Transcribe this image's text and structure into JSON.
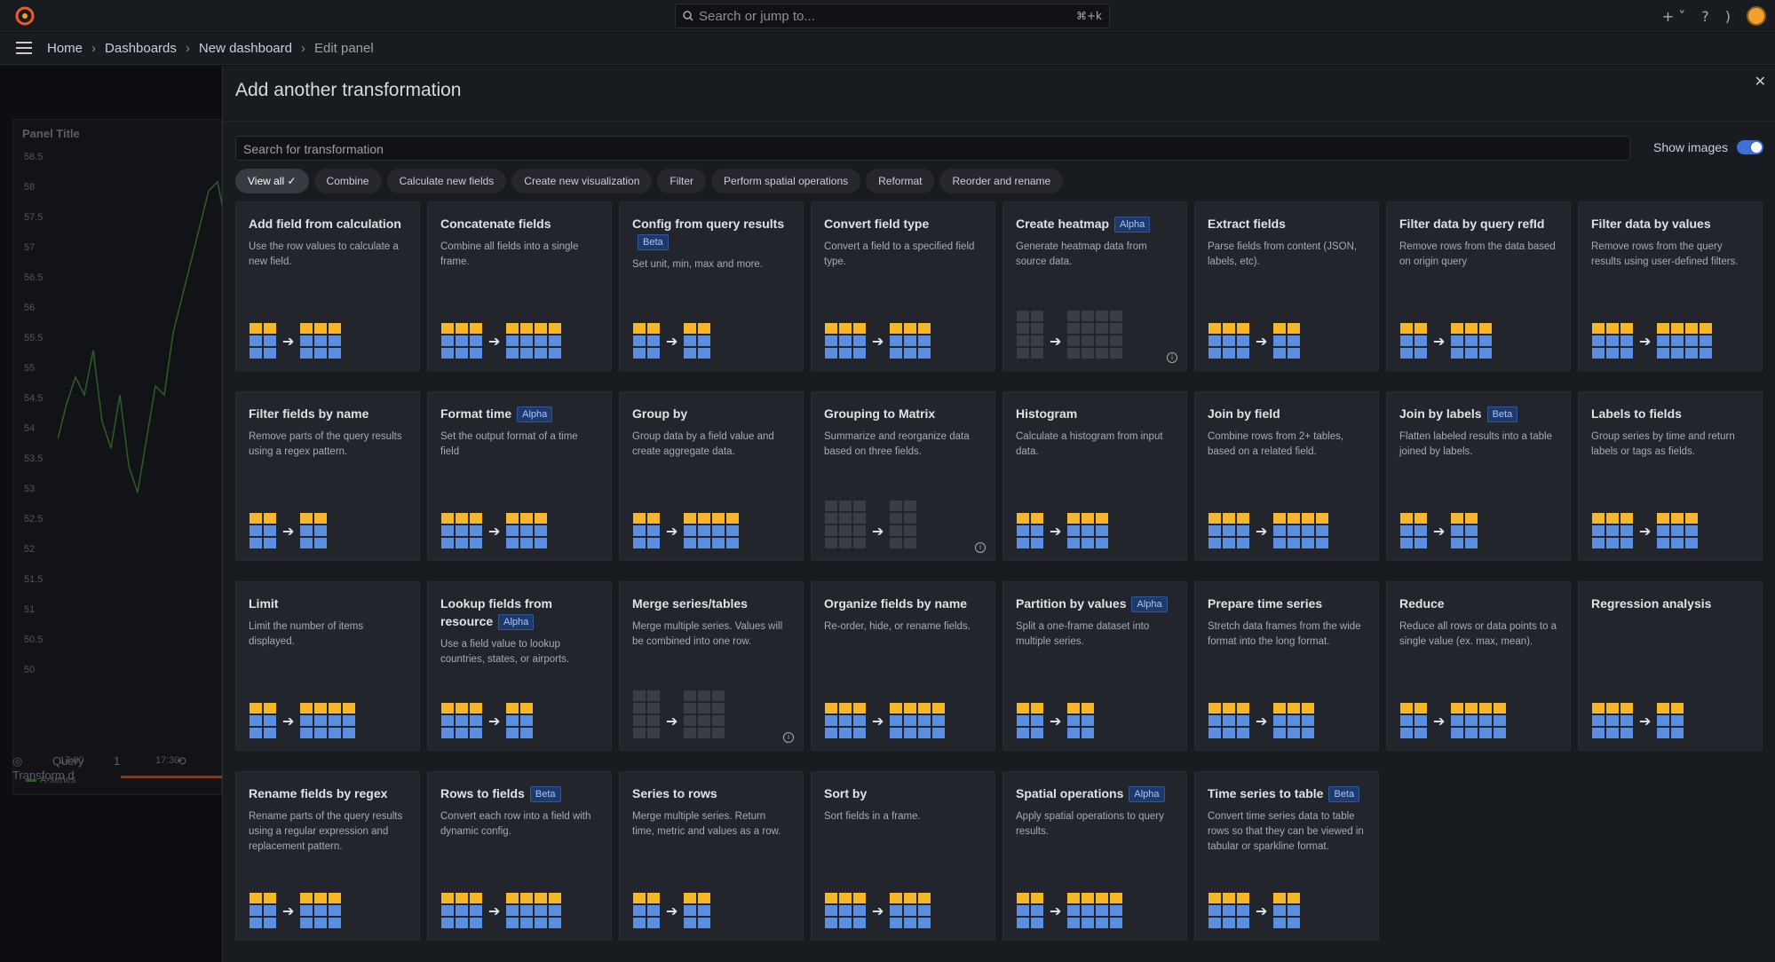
{
  "topbar": {
    "search_placeholder": "Search or jump to...",
    "search_shortcut": "⌘+k"
  },
  "breadcrumb": [
    "Home",
    "Dashboards",
    "New dashboard",
    "Edit panel"
  ],
  "background_panel": {
    "title": "Panel Title",
    "y_ticks": [
      "58.5",
      "58",
      "57.5",
      "57",
      "56.5",
      "56",
      "55.5",
      "55",
      "54.5",
      "54",
      "53.5",
      "53",
      "52.5",
      "52",
      "51.5",
      "51",
      "50.5",
      "50"
    ],
    "x_ticks": [
      "17:00",
      "17:30"
    ],
    "legend": "A-series",
    "tabs": [
      {
        "label": "Query",
        "count": "1"
      },
      {
        "label": "Transform d"
      }
    ]
  },
  "drawer": {
    "title": "Add another transformation",
    "search_placeholder": "Search for transformation",
    "show_images_label": "Show images",
    "filters": [
      "View all",
      "Combine",
      "Calculate new fields",
      "Create new visualization",
      "Filter",
      "Perform spatial operations",
      "Reformat",
      "Reorder and rename"
    ],
    "cards": [
      {
        "name": "Add field from calculation",
        "badge": "",
        "desc": "Use the row values to calculate a new field."
      },
      {
        "name": "Concatenate fields",
        "badge": "",
        "desc": "Combine all fields into a single frame."
      },
      {
        "name": "Config from query results",
        "badge": "Beta",
        "desc": "Set unit, min, max and more."
      },
      {
        "name": "Convert field type",
        "badge": "",
        "desc": "Convert a field to a specified field type."
      },
      {
        "name": "Create heatmap",
        "badge": "Alpha",
        "desc": "Generate heatmap data from source data."
      },
      {
        "name": "Extract fields",
        "badge": "",
        "desc": "Parse fields from content (JSON, labels, etc)."
      },
      {
        "name": "Filter data by query refId",
        "badge": "",
        "desc": "Remove rows from the data based on origin query"
      },
      {
        "name": "Filter data by values",
        "badge": "",
        "desc": "Remove rows from the query results using user-defined filters."
      },
      {
        "name": "Filter fields by name",
        "badge": "",
        "desc": "Remove parts of the query results using a regex pattern."
      },
      {
        "name": "Format time",
        "badge": "Alpha",
        "desc": "Set the output format of a time field"
      },
      {
        "name": "Group by",
        "badge": "",
        "desc": "Group data by a field value and create aggregate data."
      },
      {
        "name": "Grouping to Matrix",
        "badge": "",
        "desc": "Summarize and reorganize data based on three fields."
      },
      {
        "name": "Histogram",
        "badge": "",
        "desc": "Calculate a histogram from input data."
      },
      {
        "name": "Join by field",
        "badge": "",
        "desc": "Combine rows from 2+ tables, based on a related field."
      },
      {
        "name": "Join by labels",
        "badge": "Beta",
        "desc": "Flatten labeled results into a table joined by labels."
      },
      {
        "name": "Labels to fields",
        "badge": "",
        "desc": "Group series by time and return labels or tags as fields."
      },
      {
        "name": "Limit",
        "badge": "",
        "desc": "Limit the number of items displayed."
      },
      {
        "name": "Lookup fields from resource",
        "badge": "Alpha",
        "desc": "Use a field value to lookup countries, states, or airports."
      },
      {
        "name": "Merge series/tables",
        "badge": "",
        "desc": "Merge multiple series. Values will be combined into one row."
      },
      {
        "name": "Organize fields by name",
        "badge": "",
        "desc": "Re-order, hide, or rename fields."
      },
      {
        "name": "Partition by values",
        "badge": "Alpha",
        "desc": "Split a one-frame dataset into multiple series."
      },
      {
        "name": "Prepare time series",
        "badge": "",
        "desc": "Stretch data frames from the wide format into the long format."
      },
      {
        "name": "Reduce",
        "badge": "",
        "desc": "Reduce all rows or data points to a single value (ex. max, mean)."
      },
      {
        "name": "Regression analysis",
        "badge": "",
        "desc": ""
      },
      {
        "name": "Rename fields by regex",
        "badge": "",
        "desc": "Rename parts of the query results using a regular expression and replacement pattern."
      },
      {
        "name": "Rows to fields",
        "badge": "Beta",
        "desc": "Convert each row into a field with dynamic config."
      },
      {
        "name": "Series to rows",
        "badge": "",
        "desc": "Merge multiple series. Return time, metric and values as a row."
      },
      {
        "name": "Sort by",
        "badge": "",
        "desc": "Sort fields in a frame."
      },
      {
        "name": "Spatial operations",
        "badge": "Alpha",
        "desc": "Apply spatial operations to query results."
      },
      {
        "name": "Time series to table",
        "badge": "Beta",
        "desc": "Convert time series data to table rows so that they can be viewed in tabular or sparkline format."
      }
    ]
  },
  "colors": {
    "accent_blue": "#3d71d9",
    "cell_yellow": "#f6b829",
    "cell_blue": "#5b8de0"
  }
}
